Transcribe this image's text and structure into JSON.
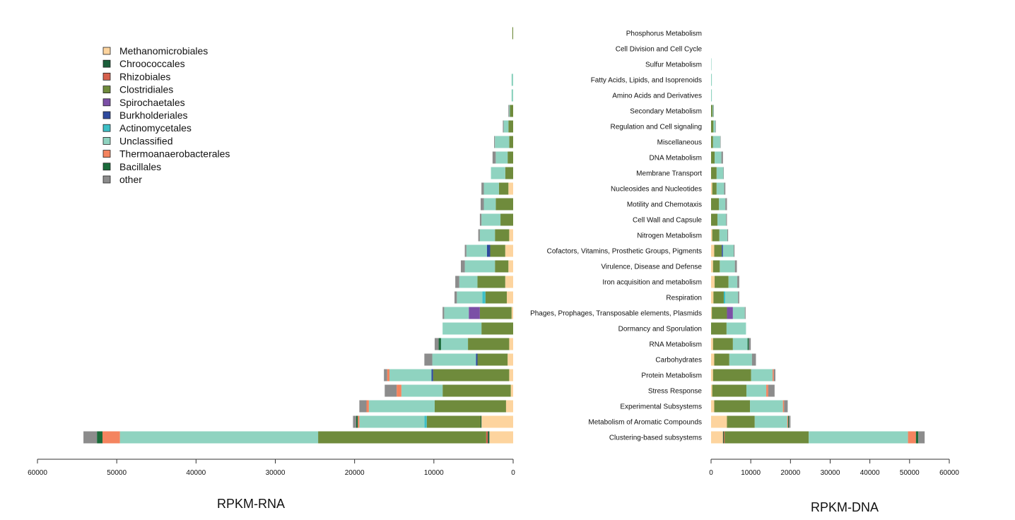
{
  "chart_data": [
    {
      "type": "bar",
      "orientation": "horizontal-stacked-reversed",
      "xlabel": "RPKM-RNA",
      "xlim": [
        60000,
        0
      ],
      "xticks": [
        "60000",
        "50000",
        "40000",
        "30000",
        "20000",
        "10000",
        "0"
      ],
      "grid": false,
      "legend": {
        "placement": "top-left",
        "entries": [
          {
            "name": "Methanomicrobiales",
            "color": "#FDD49E"
          },
          {
            "name": "Chroococcales",
            "color": "#1B5E3A"
          },
          {
            "name": "Rhizobiales",
            "color": "#D6604D"
          },
          {
            "name": "Clostridiales",
            "color": "#6F8B3C"
          },
          {
            "name": "Spirochaetales",
            "color": "#7B4FA6"
          },
          {
            "name": "Burkholderiales",
            "color": "#2E4A9E"
          },
          {
            "name": "Actinomycetales",
            "color": "#3DBFC6"
          },
          {
            "name": "Unclassified",
            "color": "#8FD3C0"
          },
          {
            "name": "Thermoanaerobacterales",
            "color": "#F4845F"
          },
          {
            "name": "Bacillales",
            "color": "#1A6B3A"
          },
          {
            "name": "other",
            "color": "#8C8C8C"
          }
        ]
      },
      "categories": [
        "Phosphorus Metabolism",
        "Cell Division and Cell Cycle",
        "Sulfur Metabolism",
        "Fatty Acids, Lipids, and Isoprenoids",
        "Amino Acids and Derivatives",
        "Secondary Metabolism",
        "Regulation and Cell signaling",
        "Miscellaneous",
        "DNA Metabolism",
        "Membrane Transport",
        "Nucleosides and Nucleotides",
        "Motility and Chemotaxis",
        "Cell Wall and Capsule",
        "Nitrogen Metabolism",
        "Cofactors, Vitamins, Prosthetic Groups, Pigments",
        "Virulence, Disease and Defense",
        "Iron acquisition and metabolism",
        "Respiration",
        "Phages, Prophages, Transposable elements, Plasmids",
        "Dormancy and Sporulation",
        "RNA Metabolism",
        "Carbohydrates",
        "Protein Metabolism",
        "Stress Response",
        "Experimental Subsystems",
        "Metabolism of Aromatic Compounds",
        "Clustering-based subsystems"
      ],
      "series": [
        {
          "name": "Methanomicrobiales",
          "values": [
            0,
            0,
            0,
            0,
            0,
            0,
            0,
            0,
            0,
            0,
            600,
            0,
            0,
            500,
            1000,
            600,
            1000,
            800,
            200,
            0,
            500,
            700,
            500,
            300,
            900,
            4000,
            3000
          ]
        },
        {
          "name": "Chroococcales",
          "values": [
            0,
            0,
            0,
            0,
            0,
            0,
            0,
            0,
            0,
            0,
            0,
            0,
            0,
            0,
            0,
            0,
            0,
            0,
            0,
            0,
            0,
            0,
            0,
            0,
            0,
            100,
            200
          ]
        },
        {
          "name": "Rhizobiales",
          "values": [
            0,
            0,
            0,
            0,
            0,
            0,
            0,
            0,
            0,
            0,
            0,
            0,
            0,
            0,
            0,
            0,
            0,
            0,
            0,
            0,
            0,
            0,
            0,
            0,
            0,
            0,
            200
          ]
        },
        {
          "name": "Clostridiales",
          "values": [
            100,
            0,
            0,
            0,
            0,
            400,
            600,
            500,
            700,
            1000,
            1200,
            2200,
            1600,
            1800,
            1900,
            1700,
            3500,
            2700,
            4000,
            4000,
            5200,
            3800,
            9600,
            8600,
            9000,
            6800,
            21200
          ]
        },
        {
          "name": "Spirochaetales",
          "values": [
            0,
            0,
            0,
            0,
            0,
            0,
            0,
            0,
            0,
            0,
            0,
            0,
            0,
            0,
            0,
            0,
            0,
            0,
            1400,
            0,
            0,
            0,
            0,
            0,
            0,
            0,
            0
          ]
        },
        {
          "name": "Burkholderiales",
          "values": [
            0,
            0,
            0,
            0,
            0,
            0,
            0,
            0,
            0,
            0,
            0,
            0,
            0,
            0,
            400,
            0,
            0,
            0,
            0,
            0,
            0,
            200,
            200,
            0,
            0,
            0,
            0
          ]
        },
        {
          "name": "Actinomycetales",
          "values": [
            0,
            0,
            0,
            0,
            0,
            0,
            0,
            0,
            0,
            0,
            0,
            0,
            0,
            0,
            0,
            0,
            0,
            400,
            0,
            0,
            0,
            0,
            0,
            0,
            0,
            300,
            0
          ]
        },
        {
          "name": "Unclassified",
          "values": [
            0,
            0,
            0,
            200,
            200,
            100,
            600,
            1800,
            1500,
            1800,
            1900,
            1500,
            2400,
            1900,
            2600,
            3800,
            2300,
            3200,
            3100,
            4900,
            3400,
            5500,
            5300,
            5200,
            8300,
            8200,
            25000
          ]
        },
        {
          "name": "Thermoanaerobacterales",
          "values": [
            0,
            0,
            0,
            0,
            0,
            0,
            0,
            0,
            0,
            0,
            0,
            0,
            0,
            0,
            0,
            0,
            0,
            0,
            0,
            0,
            0,
            0,
            300,
            600,
            300,
            200,
            2200
          ]
        },
        {
          "name": "Bacillales",
          "values": [
            0,
            0,
            0,
            0,
            0,
            0,
            0,
            0,
            0,
            0,
            0,
            0,
            0,
            0,
            0,
            0,
            0,
            0,
            0,
            0,
            300,
            0,
            0,
            0,
            0,
            200,
            700
          ]
        },
        {
          "name": "other",
          "values": [
            0,
            0,
            0,
            0,
            0,
            100,
            100,
            100,
            400,
            0,
            300,
            400,
            200,
            200,
            200,
            500,
            500,
            300,
            200,
            0,
            500,
            1000,
            400,
            1500,
            900,
            400,
            1700
          ]
        }
      ]
    },
    {
      "type": "bar",
      "orientation": "horizontal-stacked",
      "xlabel": "RPKM-DNA",
      "xlim": [
        0,
        60000
      ],
      "xticks": [
        "0",
        "10000",
        "20000",
        "30000",
        "40000",
        "50000",
        "60000"
      ],
      "grid": false,
      "categories": [
        "Phosphorus Metabolism",
        "Cell Division and Cell Cycle",
        "Sulfur Metabolism",
        "Fatty Acids, Lipids, and Isoprenoids",
        "Amino Acids and Derivatives",
        "Secondary Metabolism",
        "Regulation and Cell signaling",
        "Miscellaneous",
        "DNA Metabolism",
        "Membrane Transport",
        "Nucleosides and Nucleotides",
        "Motility and Chemotaxis",
        "Cell Wall and Capsule",
        "Nitrogen Metabolism",
        "Cofactors, Vitamins, Prosthetic Groups, Pigments",
        "Virulence, Disease and Defense",
        "Iron acquisition and metabolism",
        "Respiration",
        "Phages, Prophages, Transposable elements, Plasmids",
        "Dormancy and Sporulation",
        "RNA Metabolism",
        "Carbohydrates",
        "Protein Metabolism",
        "Stress Response",
        "Experimental Subsystems",
        "Metabolism of Aromatic Compounds",
        "Clustering-based subsystems"
      ],
      "series": [
        {
          "name": "Methanomicrobiales",
          "values": [
            0,
            0,
            0,
            0,
            0,
            0,
            0,
            0,
            0,
            0,
            300,
            0,
            0,
            300,
            800,
            500,
            900,
            600,
            200,
            0,
            500,
            800,
            500,
            300,
            800,
            4000,
            3000
          ]
        },
        {
          "name": "Chroococcales",
          "values": [
            0,
            0,
            0,
            0,
            0,
            0,
            0,
            0,
            0,
            0,
            0,
            0,
            0,
            0,
            0,
            0,
            0,
            0,
            0,
            0,
            0,
            0,
            0,
            0,
            0,
            0,
            200
          ]
        },
        {
          "name": "Rhizobiales",
          "values": [
            0,
            0,
            0,
            0,
            0,
            0,
            0,
            0,
            0,
            0,
            0,
            0,
            0,
            0,
            0,
            0,
            0,
            0,
            0,
            0,
            0,
            0,
            0,
            0,
            0,
            0,
            200
          ]
        },
        {
          "name": "Clostridiales",
          "values": [
            0,
            0,
            0,
            0,
            0,
            400,
            600,
            500,
            900,
            1400,
            1100,
            2000,
            1600,
            1800,
            1900,
            1700,
            3500,
            2600,
            3800,
            3900,
            5000,
            3800,
            9600,
            8600,
            9000,
            7000,
            21200
          ]
        },
        {
          "name": "Spirochaetales",
          "values": [
            0,
            0,
            0,
            0,
            0,
            0,
            0,
            0,
            0,
            0,
            0,
            0,
            0,
            0,
            0,
            0,
            0,
            0,
            1500,
            0,
            0,
            0,
            0,
            0,
            0,
            0,
            0
          ]
        },
        {
          "name": "Burkholderiales",
          "values": [
            0,
            0,
            0,
            0,
            0,
            0,
            0,
            0,
            0,
            0,
            0,
            0,
            0,
            0,
            300,
            0,
            0,
            0,
            0,
            0,
            0,
            0,
            0,
            0,
            0,
            0,
            0
          ]
        },
        {
          "name": "Actinomycetales",
          "values": [
            0,
            0,
            0,
            0,
            0,
            0,
            0,
            0,
            0,
            0,
            0,
            0,
            0,
            0,
            0,
            0,
            0,
            400,
            0,
            0,
            0,
            0,
            0,
            0,
            0,
            0,
            0
          ]
        },
        {
          "name": "Unclassified",
          "values": [
            0,
            0,
            100,
            200,
            200,
            200,
            500,
            1800,
            1700,
            1700,
            1900,
            1600,
            2200,
            2000,
            2700,
            3800,
            2200,
            3200,
            3000,
            4900,
            3700,
            5700,
            5400,
            5000,
            8300,
            8200,
            25000
          ]
        },
        {
          "name": "Thermoanaerobacterales",
          "values": [
            0,
            0,
            0,
            0,
            0,
            0,
            0,
            0,
            0,
            0,
            0,
            0,
            0,
            0,
            0,
            0,
            0,
            0,
            0,
            0,
            0,
            0,
            300,
            500,
            300,
            200,
            2000
          ]
        },
        {
          "name": "Bacillales",
          "values": [
            0,
            0,
            0,
            0,
            0,
            0,
            0,
            0,
            0,
            0,
            0,
            0,
            0,
            0,
            0,
            0,
            0,
            0,
            0,
            0,
            300,
            0,
            0,
            0,
            0,
            200,
            600
          ]
        },
        {
          "name": "other",
          "values": [
            0,
            0,
            0,
            0,
            0,
            100,
            100,
            100,
            400,
            100,
            300,
            400,
            200,
            200,
            200,
            500,
            500,
            300,
            200,
            0,
            500,
            1000,
            400,
            1600,
            900,
            400,
            1600
          ]
        }
      ]
    }
  ]
}
